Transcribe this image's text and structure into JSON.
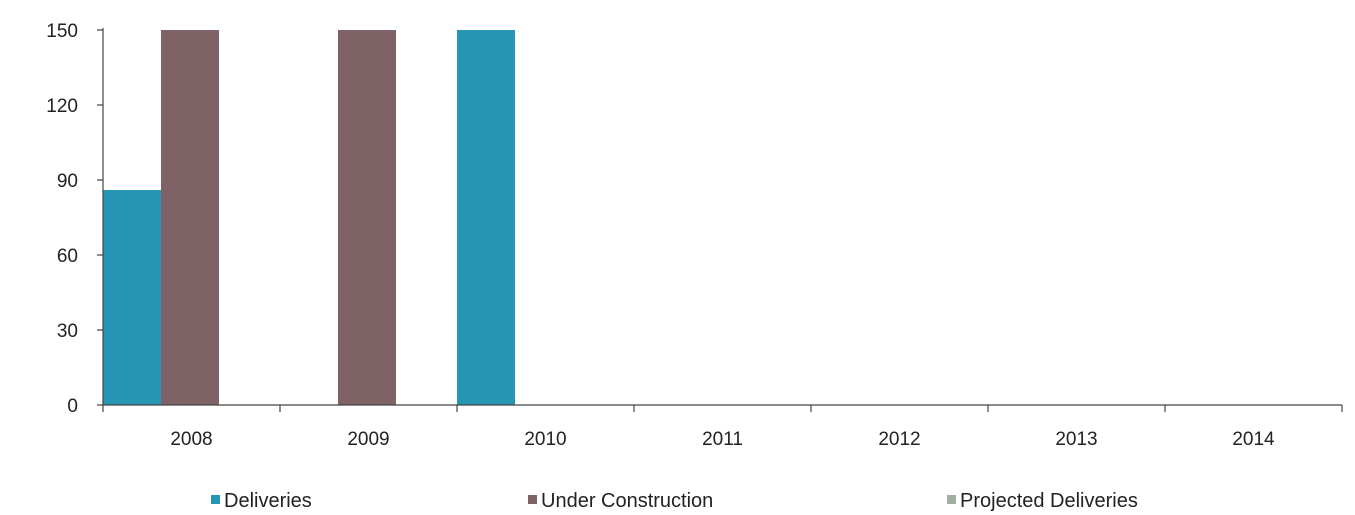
{
  "chart_data": {
    "type": "bar",
    "title": "",
    "xlabel": "",
    "ylabel": "",
    "categories": [
      "2008",
      "2009",
      "2010",
      "2011",
      "2012",
      "2013",
      "2014"
    ],
    "series": [
      {
        "name": "Deliveries",
        "color": "#2596b4",
        "values": [
          86,
          0,
          150,
          0,
          0,
          0,
          0
        ]
      },
      {
        "name": "Under Construction",
        "color": "#7e6265",
        "values": [
          150,
          150,
          0,
          0,
          0,
          0,
          0
        ]
      },
      {
        "name": "Projected Deliveries",
        "color": "#9fb0a3",
        "values": [
          0,
          0,
          0,
          0,
          0,
          0,
          0
        ]
      }
    ],
    "ylim": [
      0,
      150
    ],
    "yticks": [
      "0",
      "30",
      "60",
      "90",
      "120",
      "150"
    ],
    "grid": false,
    "legend_position": "bottom"
  }
}
